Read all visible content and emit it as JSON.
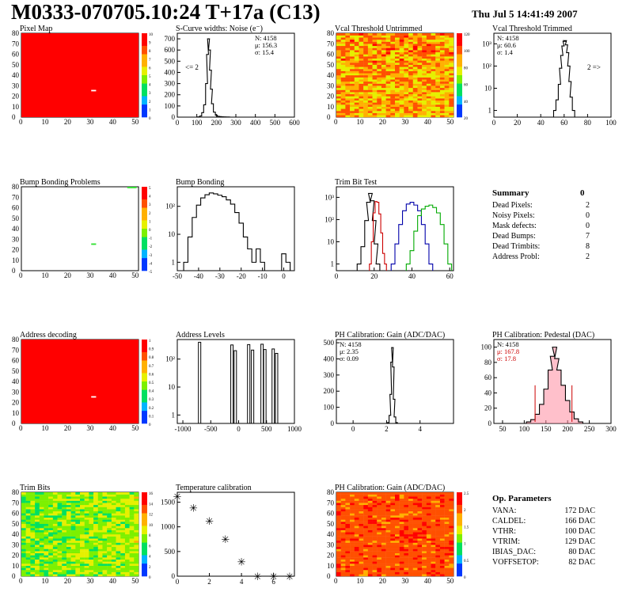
{
  "header": {
    "title": "M0333-070705.10:24 T+17a (C13)",
    "date": "Thu Jul  5 14:41:49 2007"
  },
  "panels": [
    {
      "id": "pixel-map",
      "title": "Pixel Map",
      "type": "heatmap",
      "fill": "flat-red",
      "dead": [
        {
          "x": 31,
          "y": 25
        },
        {
          "x": 32,
          "y": 25
        }
      ],
      "dead_color": "#ffffff",
      "xticks": [
        "0",
        "10",
        "20",
        "30",
        "40",
        "50"
      ],
      "yticks": [
        "0",
        "10",
        "20",
        "30",
        "40",
        "50",
        "60",
        "70",
        "80"
      ],
      "zticks": [
        "10",
        "9",
        "8",
        "7",
        "6",
        "5",
        "4",
        "3",
        "2",
        "1",
        "0"
      ]
    },
    {
      "id": "scurve",
      "title": "S-Curve widths: Noise (e⁻)",
      "type": "histogram-peak",
      "xticks": [
        "0",
        "100",
        "200",
        "300",
        "400",
        "500",
        "600"
      ],
      "yticks": [
        "0",
        "100",
        "200",
        "300",
        "400",
        "500",
        "600",
        "700"
      ],
      "stats": [
        "N: 4158",
        "μ: 156.3",
        "σ: 15.4"
      ],
      "note": "<= 2"
    },
    {
      "id": "vcal-untrimmed",
      "title": "Vcal Threshold Untrimmed",
      "type": "heatmap",
      "fill": "noisy-orange",
      "xticks": [
        "0",
        "10",
        "20",
        "30",
        "40",
        "50"
      ],
      "yticks": [
        "0",
        "10",
        "20",
        "30",
        "40",
        "50",
        "60",
        "70",
        "80"
      ],
      "zticks": [
        "120",
        "100",
        "80",
        "60",
        "40",
        "20"
      ]
    },
    {
      "id": "vcal-trimmed",
      "title": "Vcal Threshold Trimmed",
      "type": "histogram-log",
      "xticks": [
        "0",
        "20",
        "40",
        "60",
        "80",
        "100"
      ],
      "yticks": [
        "1",
        "10",
        "10²",
        "10³"
      ],
      "stats": [
        "N: 4158",
        "μ: 60.6",
        "σ:  1.4"
      ],
      "note": "2 =>"
    },
    {
      "id": "bump-problems",
      "title": "Bump Bonding Problems",
      "type": "heatmap",
      "fill": "sparse",
      "xticks": [
        "0",
        "10",
        "20",
        "30",
        "40",
        "50"
      ],
      "yticks": [
        "0",
        "10",
        "20",
        "30",
        "40",
        "50",
        "60",
        "70",
        "80"
      ],
      "zticks": [
        "5",
        "4",
        "3",
        "2",
        "1",
        "0",
        "-1",
        "-2",
        "-3",
        "-4",
        "-5"
      ]
    },
    {
      "id": "bump-bonding",
      "title": "Bump Bonding",
      "type": "histogram-log",
      "xticks": [
        "-50",
        "-40",
        "-30",
        "-20",
        "-10",
        "0"
      ],
      "yticks": [
        "1",
        "10",
        "10²"
      ]
    },
    {
      "id": "trim-bit",
      "title": "Trim Bit Test",
      "type": "histogram-log",
      "xticks": [
        "0",
        "20",
        "40",
        "60"
      ],
      "yticks": [
        "1",
        "10",
        "10²",
        "10³"
      ]
    },
    {
      "id": "address-decoding",
      "title": "Address decoding",
      "type": "heatmap",
      "fill": "flat-red",
      "dead": [
        {
          "x": 31,
          "y": 25
        },
        {
          "x": 32,
          "y": 25
        }
      ],
      "dead_color": "#ffffff",
      "xticks": [
        "0",
        "10",
        "20",
        "30",
        "40",
        "50"
      ],
      "yticks": [
        "0",
        "10",
        "20",
        "30",
        "40",
        "50",
        "60",
        "70",
        "80"
      ],
      "zticks": [
        "1",
        "0.9",
        "0.8",
        "0.7",
        "0.6",
        "0.5",
        "0.4",
        "0.3",
        "0.2",
        "0.1",
        "0"
      ]
    },
    {
      "id": "address-levels",
      "title": "Address Levels",
      "type": "histogram-log",
      "xticks": [
        "-1000",
        "-500",
        "0",
        "500",
        "1000"
      ],
      "yticks": [
        "1",
        "10",
        "10²"
      ]
    },
    {
      "id": "ph-gain",
      "title": "PH Calibration: Gain (ADC/DAC)",
      "type": "histogram-peak",
      "xticks": [
        "0",
        "2",
        "4"
      ],
      "yticks": [
        "0",
        "100",
        "200",
        "300",
        "400",
        "500"
      ],
      "stats": [
        "N: 4158",
        "μ: 2.35",
        "σ: 0.09"
      ]
    },
    {
      "id": "ph-pedestal",
      "title": "PH Calibration: Pedestal (DAC)",
      "type": "histogram-peak",
      "xticks": [
        "50",
        "100",
        "150",
        "200",
        "250",
        "300"
      ],
      "yticks": [
        "0",
        "20",
        "40",
        "60",
        "80",
        "100"
      ],
      "stats": [
        "N: 4158",
        "μ: 167.8",
        "σ: 17.8"
      ]
    },
    {
      "id": "trim-bits",
      "title": "Trim Bits",
      "type": "heatmap",
      "fill": "noisy-green",
      "xticks": [
        "0",
        "10",
        "20",
        "30",
        "40",
        "50"
      ],
      "yticks": [
        "0",
        "10",
        "20",
        "30",
        "40",
        "50",
        "60",
        "70",
        "80"
      ],
      "zticks": [
        "16",
        "14",
        "12",
        "10",
        "8",
        "6",
        "4",
        "2",
        "0"
      ]
    },
    {
      "id": "temp-cal",
      "title": "Temperature calibration",
      "type": "scatter",
      "xticks": [
        "0",
        "2",
        "4",
        "6"
      ],
      "yticks": [
        "0",
        "500",
        "1000",
        "1500"
      ]
    },
    {
      "id": "ph-gain-map",
      "title": "PH Calibration: Gain (ADC/DAC)",
      "type": "heatmap",
      "fill": "noisy-red",
      "xticks": [
        "0",
        "10",
        "20",
        "30",
        "40",
        "50"
      ],
      "yticks": [
        "0",
        "10",
        "20",
        "30",
        "40",
        "50",
        "60",
        "70",
        "80"
      ],
      "zticks": [
        "2.5",
        "2",
        "1.5",
        "1",
        "0.5",
        "0"
      ]
    }
  ],
  "summary": {
    "heading": "Summary",
    "heading_value": "0",
    "rows": [
      {
        "label": "Dead Pixels:",
        "value": "2"
      },
      {
        "label": "Noisy Pixels:",
        "value": "0"
      },
      {
        "label": "Mask defects:",
        "value": "0"
      },
      {
        "label": "Dead Bumps:",
        "value": "7"
      },
      {
        "label": "Dead Trimbits:",
        "value": "8"
      },
      {
        "label": "Address Probl:",
        "value": "2"
      }
    ]
  },
  "op_params": {
    "heading": "Op. Parameters",
    "rows": [
      {
        "label": "VANA:",
        "value": "172 DAC"
      },
      {
        "label": "CALDEL:",
        "value": "166 DAC"
      },
      {
        "label": "VTHR:",
        "value": "100 DAC"
      },
      {
        "label": "VTRIM:",
        "value": "129 DAC"
      },
      {
        "label": "IBIAS_DAC:",
        "value": "80 DAC"
      },
      {
        "label": "VOFFSETOP:",
        "value": "82 DAC"
      }
    ]
  },
  "chart_data": [
    {
      "type": "heatmap",
      "title": "Pixel Map",
      "xlim": [
        0,
        52
      ],
      "ylim": [
        0,
        80
      ],
      "zlim": [
        0,
        10
      ],
      "uniform_value": 10,
      "dead_pixels": [
        [
          31,
          25
        ],
        [
          32,
          25
        ]
      ]
    },
    {
      "type": "line",
      "title": "S-Curve widths: Noise (e⁻)",
      "xlim": [
        0,
        600
      ],
      "ylim": [
        0,
        750
      ],
      "x": [
        100,
        110,
        120,
        130,
        140,
        150,
        155,
        160,
        165,
        170,
        175,
        180,
        190,
        200,
        210,
        220,
        230,
        240,
        260,
        280
      ],
      "y": [
        0,
        2,
        10,
        40,
        110,
        300,
        560,
        700,
        600,
        420,
        250,
        120,
        45,
        18,
        8,
        5,
        3,
        2,
        1,
        0
      ]
    },
    {
      "type": "heatmap",
      "title": "Vcal Threshold Untrimmed",
      "xlim": [
        0,
        52
      ],
      "ylim": [
        0,
        80
      ],
      "zlim": [
        0,
        130
      ],
      "typical_value": 95
    },
    {
      "type": "line",
      "title": "Vcal Threshold Trimmed",
      "xlim": [
        0,
        100
      ],
      "ylim": [
        0.5,
        3000
      ],
      "log_y": true,
      "x": [
        52,
        54,
        56,
        57,
        58,
        59,
        60,
        61,
        62,
        63,
        64,
        65,
        66,
        68
      ],
      "y": [
        1,
        3,
        15,
        80,
        300,
        800,
        1300,
        1400,
        900,
        400,
        100,
        20,
        4,
        1
      ]
    },
    {
      "type": "heatmap",
      "title": "Bump Bonding Problems",
      "xlim": [
        0,
        52
      ],
      "ylim": [
        0,
        80
      ],
      "zlim": [
        -5,
        5
      ],
      "flagged": [
        [
          31,
          25
        ],
        [
          32,
          25
        ],
        [
          47,
          79
        ],
        [
          48,
          79
        ],
        [
          49,
          79
        ],
        [
          50,
          79
        ]
      ]
    },
    {
      "type": "line",
      "title": "Bump Bonding",
      "xlim": [
        -50,
        5
      ],
      "ylim": [
        0.5,
        500
      ],
      "log_y": true,
      "x": [
        -46,
        -44,
        -42,
        -40,
        -38,
        -36,
        -34,
        -32,
        -30,
        -28,
        -26,
        -24,
        -22,
        -20,
        -18,
        -16,
        -14,
        -12,
        -10,
        -8,
        -6,
        -4,
        -2,
        0,
        2
      ],
      "y": [
        1,
        8,
        40,
        110,
        200,
        260,
        300,
        280,
        250,
        220,
        170,
        120,
        60,
        25,
        8,
        3,
        1,
        3,
        1,
        0,
        0,
        0,
        0,
        2,
        1
      ]
    },
    {
      "type": "line",
      "title": "Trim Bit Test",
      "xlim": [
        0,
        62
      ],
      "ylim": [
        0.5,
        3000
      ],
      "log_y": true,
      "series": [
        {
          "color": "#000000",
          "x": [
            12,
            14,
            16,
            17,
            18,
            19,
            20,
            21,
            22
          ],
          "y": [
            1,
            6,
            90,
            600,
            1500,
            700,
            90,
            8,
            1
          ]
        },
        {
          "color": "#cc0000",
          "x": [
            18,
            19,
            20,
            21,
            22,
            23,
            24,
            25,
            26
          ],
          "y": [
            1,
            10,
            200,
            650,
            600,
            180,
            25,
            3,
            1
          ]
        },
        {
          "color": "#0000aa",
          "x": [
            30,
            32,
            34,
            36,
            38,
            40,
            42,
            44,
            46,
            48,
            50
          ],
          "y": [
            1,
            8,
            60,
            250,
            500,
            600,
            450,
            250,
            60,
            8,
            1
          ]
        },
        {
          "color": "#00aa00",
          "x": [
            38,
            40,
            42,
            44,
            46,
            48,
            50,
            52,
            54,
            56,
            58,
            60
          ],
          "y": [
            1,
            4,
            30,
            150,
            300,
            400,
            450,
            350,
            200,
            60,
            8,
            1
          ]
        }
      ]
    },
    {
      "type": "heatmap",
      "title": "Address decoding",
      "xlim": [
        0,
        52
      ],
      "ylim": [
        0,
        80
      ],
      "zlim": [
        0,
        1
      ],
      "uniform_value": 1,
      "dead_pixels": [
        [
          31,
          25
        ],
        [
          32,
          25
        ]
      ]
    },
    {
      "type": "bar",
      "title": "Address Levels",
      "xlim": [
        -1100,
        1000
      ],
      "ylim": [
        0.5,
        500
      ],
      "log_y": true,
      "x": [
        -700,
        -120,
        -60,
        180,
        250,
        420,
        470,
        620,
        680
      ],
      "y": [
        400,
        320,
        200,
        330,
        210,
        340,
        220,
        230,
        160
      ]
    },
    {
      "type": "line",
      "title": "PH Calibration: Gain (ADC/DAC)",
      "xlim": [
        -1,
        6
      ],
      "ylim": [
        0,
        520
      ],
      "x": [
        2.0,
        2.1,
        2.2,
        2.25,
        2.3,
        2.35,
        2.4,
        2.45,
        2.5,
        2.6,
        2.7
      ],
      "y": [
        0,
        5,
        50,
        180,
        380,
        470,
        350,
        150,
        40,
        5,
        0
      ]
    },
    {
      "type": "line",
      "title": "PH Calibration: Pedestal (DAC)",
      "xlim": [
        30,
        300
      ],
      "ylim": [
        0,
        110
      ],
      "x": [
        100,
        110,
        120,
        130,
        140,
        150,
        160,
        165,
        170,
        175,
        180,
        190,
        200,
        210,
        220,
        230,
        240
      ],
      "y": [
        0,
        2,
        5,
        12,
        25,
        45,
        70,
        88,
        100,
        85,
        70,
        50,
        30,
        15,
        6,
        2,
        0
      ],
      "markers": [
        125,
        210
      ]
    },
    {
      "type": "heatmap",
      "title": "Trim Bits",
      "xlim": [
        0,
        52
      ],
      "ylim": [
        0,
        80
      ],
      "zlim": [
        0,
        16
      ],
      "typical_value": 9
    },
    {
      "type": "scatter",
      "title": "Temperature calibration",
      "xlim": [
        0,
        7.3
      ],
      "ylim": [
        0,
        1700
      ],
      "x": [
        0,
        1,
        2,
        3,
        4,
        5,
        6,
        7
      ],
      "y": [
        1620,
        1390,
        1120,
        750,
        300,
        0,
        0,
        0
      ]
    },
    {
      "type": "heatmap",
      "title": "PH Calibration: Gain (ADC/DAC)",
      "xlim": [
        0,
        52
      ],
      "ylim": [
        0,
        80
      ],
      "zlim": [
        0,
        2.6
      ],
      "typical_value": 2.3
    }
  ]
}
